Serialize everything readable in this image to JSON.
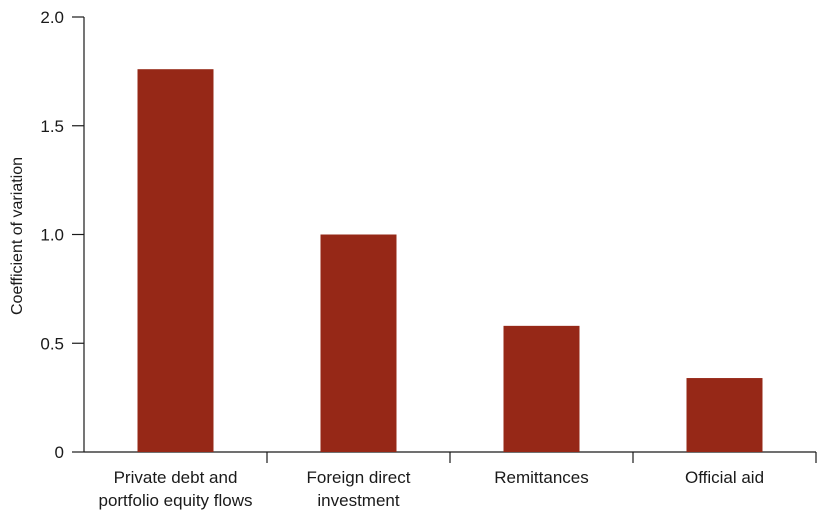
{
  "chart_data": {
    "type": "bar",
    "categories": [
      [
        "Private debt and",
        "portfolio equity flows"
      ],
      [
        "Foreign direct",
        "investment"
      ],
      [
        "Remittances"
      ],
      [
        "Official aid"
      ]
    ],
    "values": [
      1.76,
      1.0,
      0.58,
      0.34
    ],
    "title": "",
    "xlabel": "",
    "ylabel": "Coefficient of variation",
    "ylim": [
      0,
      2.0
    ],
    "yticks": [
      0,
      0.5,
      1.0,
      1.5,
      2.0
    ],
    "ytick_labels": [
      "0",
      "0.5",
      "1.0",
      "1.5",
      "2.0"
    ],
    "bar_color": "#962817",
    "grid": false,
    "legend": "none"
  }
}
